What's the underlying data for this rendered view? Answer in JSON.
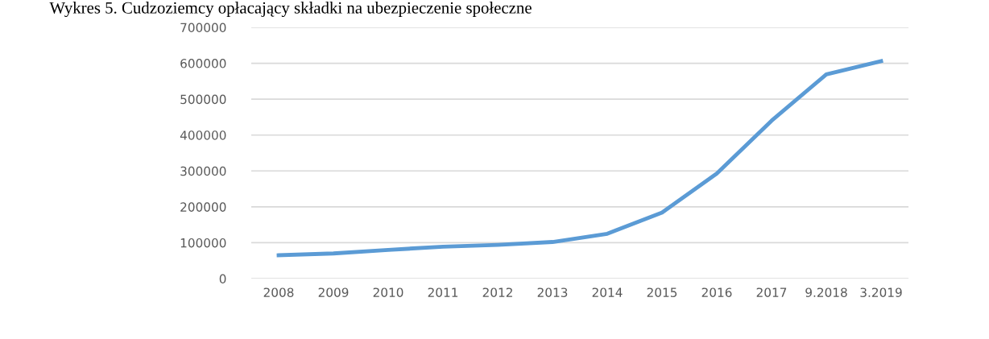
{
  "chart_data": {
    "type": "line",
    "title": "Wykres 5. Cudzoziemcy opłacający składki na ubezpieczenie społeczne",
    "categories": [
      "2008",
      "2009",
      "2010",
      "2011",
      "2012",
      "2013",
      "2014",
      "2015",
      "2016",
      "2017",
      "9.2018",
      "3.2019"
    ],
    "series": [
      {
        "color": "#5b9bd5",
        "values": [
          65000,
          70000,
          80000,
          89000,
          94000,
          102000,
          125000,
          184000,
          293000,
          440000,
          569000,
          606000
        ]
      }
    ],
    "ylim": [
      0,
      700000
    ],
    "yticks": [
      0,
      100000,
      200000,
      300000,
      400000,
      500000,
      600000,
      700000
    ],
    "grid": "y",
    "marker": "none",
    "line_style": "solid"
  }
}
